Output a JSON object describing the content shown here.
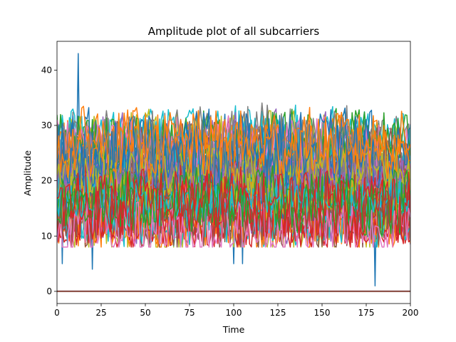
{
  "chart_data": {
    "type": "line",
    "title": "Amplitude plot of all subcarriers",
    "xlabel": "Time",
    "ylabel": "Amplitude",
    "xlim": [
      0,
      200
    ],
    "ylim": [
      -2.2,
      45.2
    ],
    "xticks": [
      0,
      25,
      50,
      75,
      100,
      125,
      150,
      175,
      200
    ],
    "yticks": [
      0,
      10,
      20,
      30,
      40
    ],
    "legend": "none",
    "grid": false,
    "palette": [
      "#1f77b4",
      "#ff7f0e",
      "#2ca02c",
      "#d62728",
      "#9467bd",
      "#8c564b",
      "#e377c2",
      "#7f7f7f",
      "#bcbd22",
      "#17becf"
    ],
    "series_count": 64,
    "samples": 200,
    "description": "Dense overlapping amplitude traces; most series fluctuate between ~8 and ~35, several subcarriers remain at 0, one trace spikes to ~43 near t=12 and dips to ~1 near t=180; most active traces end around t=200 while a few stop near t=183.",
    "notable_points": [
      {
        "x": 12,
        "y": 43
      },
      {
        "x": 3,
        "y": 5
      },
      {
        "x": 20,
        "y": 4
      },
      {
        "x": 100,
        "y": 5
      },
      {
        "x": 105,
        "y": 5
      },
      {
        "x": 180,
        "y": 1
      }
    ],
    "zero_line": {
      "y": 0,
      "x_range": [
        0,
        200
      ]
    }
  }
}
